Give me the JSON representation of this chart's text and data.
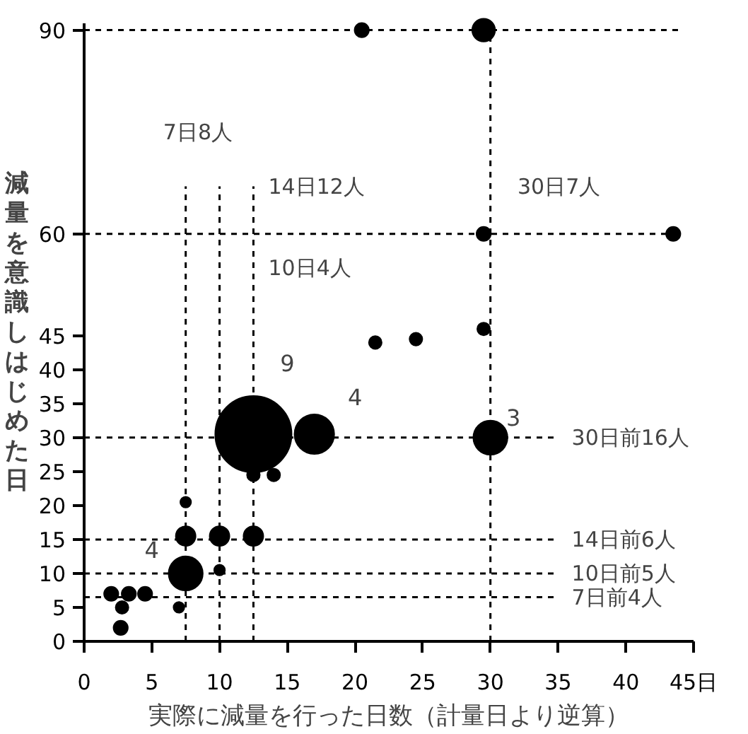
{
  "chart_data": {
    "type": "bubble",
    "xlabel": "実際に減量を行った日数（計量日より逆算）",
    "ylabel": "減量を意識しはじめた日",
    "x": [
      12.5,
      17,
      30,
      7.5,
      7.5,
      10,
      12.5,
      12.5,
      14,
      7.5,
      10,
      7,
      2,
      3.3,
      4.5,
      2.8,
      2.7,
      21.5,
      24.5,
      29.5,
      29.5,
      43.5,
      20.5,
      29.5
    ],
    "values": [
      30.5,
      30.5,
      30,
      10,
      15.5,
      15.5,
      15.5,
      24.5,
      24.5,
      20.5,
      10.5,
      5,
      7,
      7,
      7,
      5,
      2,
      44,
      44.5,
      46,
      60,
      60,
      90,
      90
    ],
    "sizes": [
      1,
      0.27,
      0.2,
      0.2,
      0.067,
      0.067,
      0.067,
      0.028,
      0.028,
      0.02,
      0.02,
      0.02,
      0.035,
      0.035,
      0.035,
      0.028,
      0.035,
      0.028,
      0.028,
      0.028,
      0.035,
      0.035,
      0.035,
      0.09
    ],
    "color": "#000000",
    "xlim": [
      0,
      45
    ],
    "xticks": [
      0,
      5,
      10,
      15,
      20,
      25,
      30,
      35,
      40,
      {
        "value": 45,
        "label": "45日"
      }
    ],
    "ylim": [
      0,
      91
    ],
    "yticks": [
      0,
      5,
      10,
      15,
      20,
      25,
      30,
      35,
      40,
      45,
      60,
      90
    ],
    "grid": false,
    "ref_lines": [
      {
        "axis": "y",
        "value": 90,
        "line_style": "dashed"
      },
      {
        "axis": "y",
        "value": 60,
        "line_style": "dashed"
      },
      {
        "axis": "y",
        "value": 30,
        "label": "30日前16人",
        "line_style": "dashed"
      },
      {
        "axis": "y",
        "value": 15,
        "label": "14日前6人",
        "line_style": "dashed"
      },
      {
        "axis": "y",
        "value": 10,
        "label": "10日前5人",
        "line_style": "dashed"
      },
      {
        "axis": "y",
        "value": 6.5,
        "label": "7日前4人",
        "line_style": "dashed"
      },
      {
        "axis": "x",
        "value": 7.5,
        "label": "7日8人",
        "line_style": "dashed"
      },
      {
        "axis": "x",
        "value": 10,
        "label": "10日4人",
        "line_style": "dashed"
      },
      {
        "axis": "x",
        "value": 12.5,
        "label": "14日12人",
        "line_style": "dashed"
      },
      {
        "axis": "x",
        "value": 30,
        "label": "30日7人",
        "line_style": "dashed"
      }
    ],
    "annotations": [
      "9",
      "4",
      "4",
      "3"
    ]
  }
}
